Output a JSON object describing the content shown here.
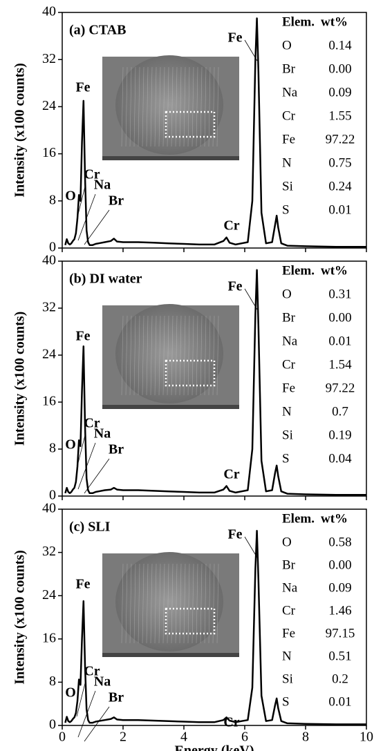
{
  "chart_data": [
    {
      "type": "line",
      "title": "(a) CTAB",
      "ylabel": "Intensity (x100 counts)",
      "color": "#000000",
      "xlim": [
        0,
        10
      ],
      "ylim": [
        0,
        40
      ],
      "yticks": [
        0,
        8,
        16,
        24,
        32,
        40
      ],
      "x": [
        0.1,
        0.15,
        0.2,
        0.25,
        0.3,
        0.35,
        0.4,
        0.45,
        0.5,
        0.55,
        0.6,
        0.65,
        0.7,
        0.75,
        0.8,
        0.85,
        0.9,
        1.0,
        1.1,
        1.2,
        1.4,
        1.6,
        1.7,
        1.8,
        2.0,
        2.5,
        3.0,
        3.5,
        4.0,
        4.5,
        5.0,
        5.3,
        5.4,
        5.5,
        5.7,
        5.9,
        6.1,
        6.25,
        6.35,
        6.4,
        6.45,
        6.55,
        6.7,
        6.9,
        7.0,
        7.05,
        7.1,
        7.2,
        7.4,
        8,
        9,
        10
      ],
      "values": [
        0.5,
        1.5,
        0.8,
        0.6,
        0.8,
        1.2,
        1.5,
        2.5,
        5,
        9,
        8,
        18,
        25,
        12,
        3,
        1,
        0.5,
        0.5,
        0.7,
        0.8,
        1.0,
        1.2,
        1.6,
        1.1,
        1.0,
        1.0,
        0.9,
        0.8,
        0.7,
        0.6,
        0.6,
        1.2,
        1.8,
        0.9,
        0.6,
        0.8,
        1.0,
        8,
        32,
        39,
        30,
        6,
        0.8,
        1.0,
        4,
        5.5,
        3.5,
        0.8,
        0.4,
        0.3,
        0.2,
        0.2
      ],
      "annotations": [
        "Fe",
        "Cr",
        "Na",
        "Br",
        "O",
        "Cr",
        "Fe"
      ],
      "table": {
        "header": [
          "Elem.",
          "wt%"
        ],
        "rows": [
          [
            "O",
            "0.14"
          ],
          [
            "Br",
            "0.00"
          ],
          [
            "Na",
            "0.09"
          ],
          [
            "Cr",
            "1.55"
          ],
          [
            "Fe",
            "97.22"
          ],
          [
            "N",
            "0.75"
          ],
          [
            "Si",
            "0.24"
          ],
          [
            "S",
            "0.01"
          ]
        ]
      }
    },
    {
      "type": "line",
      "title": "(b) DI water",
      "ylabel": "Intensity (x100 counts)",
      "color": "#000000",
      "xlim": [
        0,
        10
      ],
      "ylim": [
        0,
        40
      ],
      "yticks": [
        0,
        8,
        16,
        24,
        32,
        40
      ],
      "x": [
        0.1,
        0.15,
        0.2,
        0.25,
        0.3,
        0.35,
        0.4,
        0.45,
        0.5,
        0.55,
        0.6,
        0.65,
        0.7,
        0.75,
        0.8,
        0.85,
        0.9,
        1.0,
        1.1,
        1.2,
        1.4,
        1.6,
        1.7,
        1.8,
        2.0,
        2.5,
        3.0,
        3.5,
        4.0,
        4.5,
        5.0,
        5.3,
        5.4,
        5.5,
        5.7,
        5.9,
        6.1,
        6.25,
        6.35,
        6.4,
        6.45,
        6.55,
        6.7,
        6.9,
        7.0,
        7.05,
        7.1,
        7.2,
        7.4,
        8,
        9,
        10
      ],
      "values": [
        0.5,
        1.4,
        0.7,
        0.5,
        0.7,
        1.1,
        1.4,
        2.4,
        5,
        9.5,
        8.5,
        18,
        25.5,
        12,
        3,
        1,
        0.5,
        0.5,
        0.7,
        0.8,
        1.0,
        1.1,
        1.4,
        1.1,
        1.0,
        1.0,
        0.9,
        0.8,
        0.7,
        0.6,
        0.6,
        1.1,
        1.7,
        0.9,
        0.6,
        0.8,
        1.0,
        8,
        31,
        38.5,
        29,
        6,
        0.8,
        1.0,
        4,
        5.2,
        3.4,
        0.8,
        0.4,
        0.3,
        0.2,
        0.2
      ],
      "annotations": [
        "Fe",
        "Cr",
        "Na",
        "Br",
        "O",
        "Cr",
        "Fe"
      ],
      "table": {
        "header": [
          "Elem.",
          "wt%"
        ],
        "rows": [
          [
            "O",
            "0.31"
          ],
          [
            "Br",
            "0.00"
          ],
          [
            "Na",
            "0.01"
          ],
          [
            "Cr",
            "1.54"
          ],
          [
            "Fe",
            "97.22"
          ],
          [
            "N",
            "0.7"
          ],
          [
            "Si",
            "0.19"
          ],
          [
            "S",
            "0.04"
          ]
        ]
      }
    },
    {
      "type": "line",
      "title": "(c) SLI",
      "ylabel": "Intensity (x100 counts)",
      "xlabel": "Energy (keV)",
      "color": "#000000",
      "xlim": [
        0,
        10
      ],
      "ylim": [
        0,
        40
      ],
      "xticks": [
        0,
        2,
        4,
        6,
        8,
        10
      ],
      "yticks": [
        0,
        8,
        16,
        24,
        32,
        40
      ],
      "x": [
        0.1,
        0.15,
        0.2,
        0.25,
        0.3,
        0.35,
        0.4,
        0.45,
        0.5,
        0.55,
        0.6,
        0.65,
        0.7,
        0.75,
        0.8,
        0.85,
        0.9,
        1.0,
        1.1,
        1.2,
        1.4,
        1.6,
        1.7,
        1.8,
        2.0,
        2.5,
        3.0,
        3.5,
        4.0,
        4.5,
        5.0,
        5.3,
        5.4,
        5.5,
        5.7,
        5.9,
        6.1,
        6.25,
        6.35,
        6.4,
        6.45,
        6.55,
        6.7,
        6.9,
        7.0,
        7.05,
        7.1,
        7.2,
        7.4,
        8,
        9,
        10
      ],
      "values": [
        0.5,
        1.6,
        0.8,
        0.6,
        0.8,
        1.2,
        1.5,
        2.3,
        4.5,
        8.5,
        7.5,
        16,
        23,
        11,
        3,
        1,
        0.5,
        0.5,
        0.7,
        0.8,
        1.0,
        1.2,
        1.5,
        1.1,
        1.0,
        1.0,
        0.9,
        0.8,
        0.7,
        0.6,
        0.6,
        1.0,
        1.5,
        0.9,
        0.6,
        0.8,
        1.0,
        7,
        29,
        36,
        27,
        5.5,
        0.8,
        1.0,
        3.8,
        5,
        3.2,
        0.8,
        0.4,
        0.3,
        0.2,
        0.2
      ],
      "annotations": [
        "Fe",
        "Cr",
        "Na",
        "Br",
        "O",
        "Cr",
        "Fe"
      ],
      "table": {
        "header": [
          "Elem.",
          "wt%"
        ],
        "rows": [
          [
            "O",
            "0.58"
          ],
          [
            "Br",
            "0.00"
          ],
          [
            "Na",
            "0.09"
          ],
          [
            "Cr",
            "1.46"
          ],
          [
            "Fe",
            "97.15"
          ],
          [
            "N",
            "0.51"
          ],
          [
            "Si",
            "0.2"
          ],
          [
            "S",
            "0.01"
          ]
        ]
      }
    }
  ]
}
